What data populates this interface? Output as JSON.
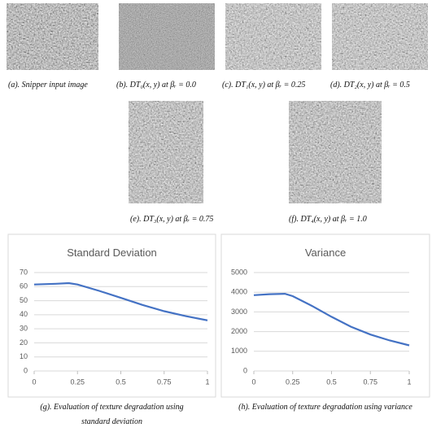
{
  "figure": {
    "captions": [
      "(a). Snipper input image",
      "(b). DT₀(x, y) at βᵣ = 0.0",
      "(c). DT₁(x, y) at βᵣ = 0.25",
      "(d). DT₂(x, y) at βᵣ = 0.5",
      "(e). DT₃(x, y) at βᵣ = 0.75",
      "(f). DT₄(x, y)  at βᵣ = 1.0"
    ]
  },
  "chart_data": [
    {
      "type": "line",
      "title": "Standard Deviation",
      "color": "#4472c4",
      "x": [
        0,
        0.125,
        0.2,
        0.25,
        0.375,
        0.5,
        0.625,
        0.75,
        0.875,
        1
      ],
      "values": [
        61.5,
        62,
        62.5,
        61.5,
        57,
        52,
        47,
        42.5,
        39,
        36
      ],
      "xlim": [
        0,
        1
      ],
      "xticks": [
        0,
        0.25,
        0.5,
        0.75,
        1
      ],
      "ylim": [
        0,
        70
      ],
      "yticks": [
        0,
        10,
        20,
        30,
        40,
        50,
        60,
        70
      ],
      "grid": true,
      "caption_lines": [
        "(g). Evaluation of texture degradation using",
        "standard deviation"
      ]
    },
    {
      "type": "line",
      "title": "Variance",
      "color": "#4472c4",
      "x": [
        0,
        0.1,
        0.2,
        0.25,
        0.375,
        0.5,
        0.625,
        0.75,
        0.875,
        1
      ],
      "values": [
        3850,
        3900,
        3920,
        3800,
        3300,
        2750,
        2250,
        1850,
        1550,
        1300
      ],
      "xlim": [
        0,
        1
      ],
      "xticks": [
        0,
        0.25,
        0.5,
        0.75,
        1
      ],
      "ylim": [
        0,
        5000
      ],
      "yticks": [
        0,
        1000,
        2000,
        3000,
        4000,
        5000
      ],
      "grid": true,
      "caption_lines": [
        "(h). Evaluation of texture degradation using variance"
      ]
    }
  ]
}
